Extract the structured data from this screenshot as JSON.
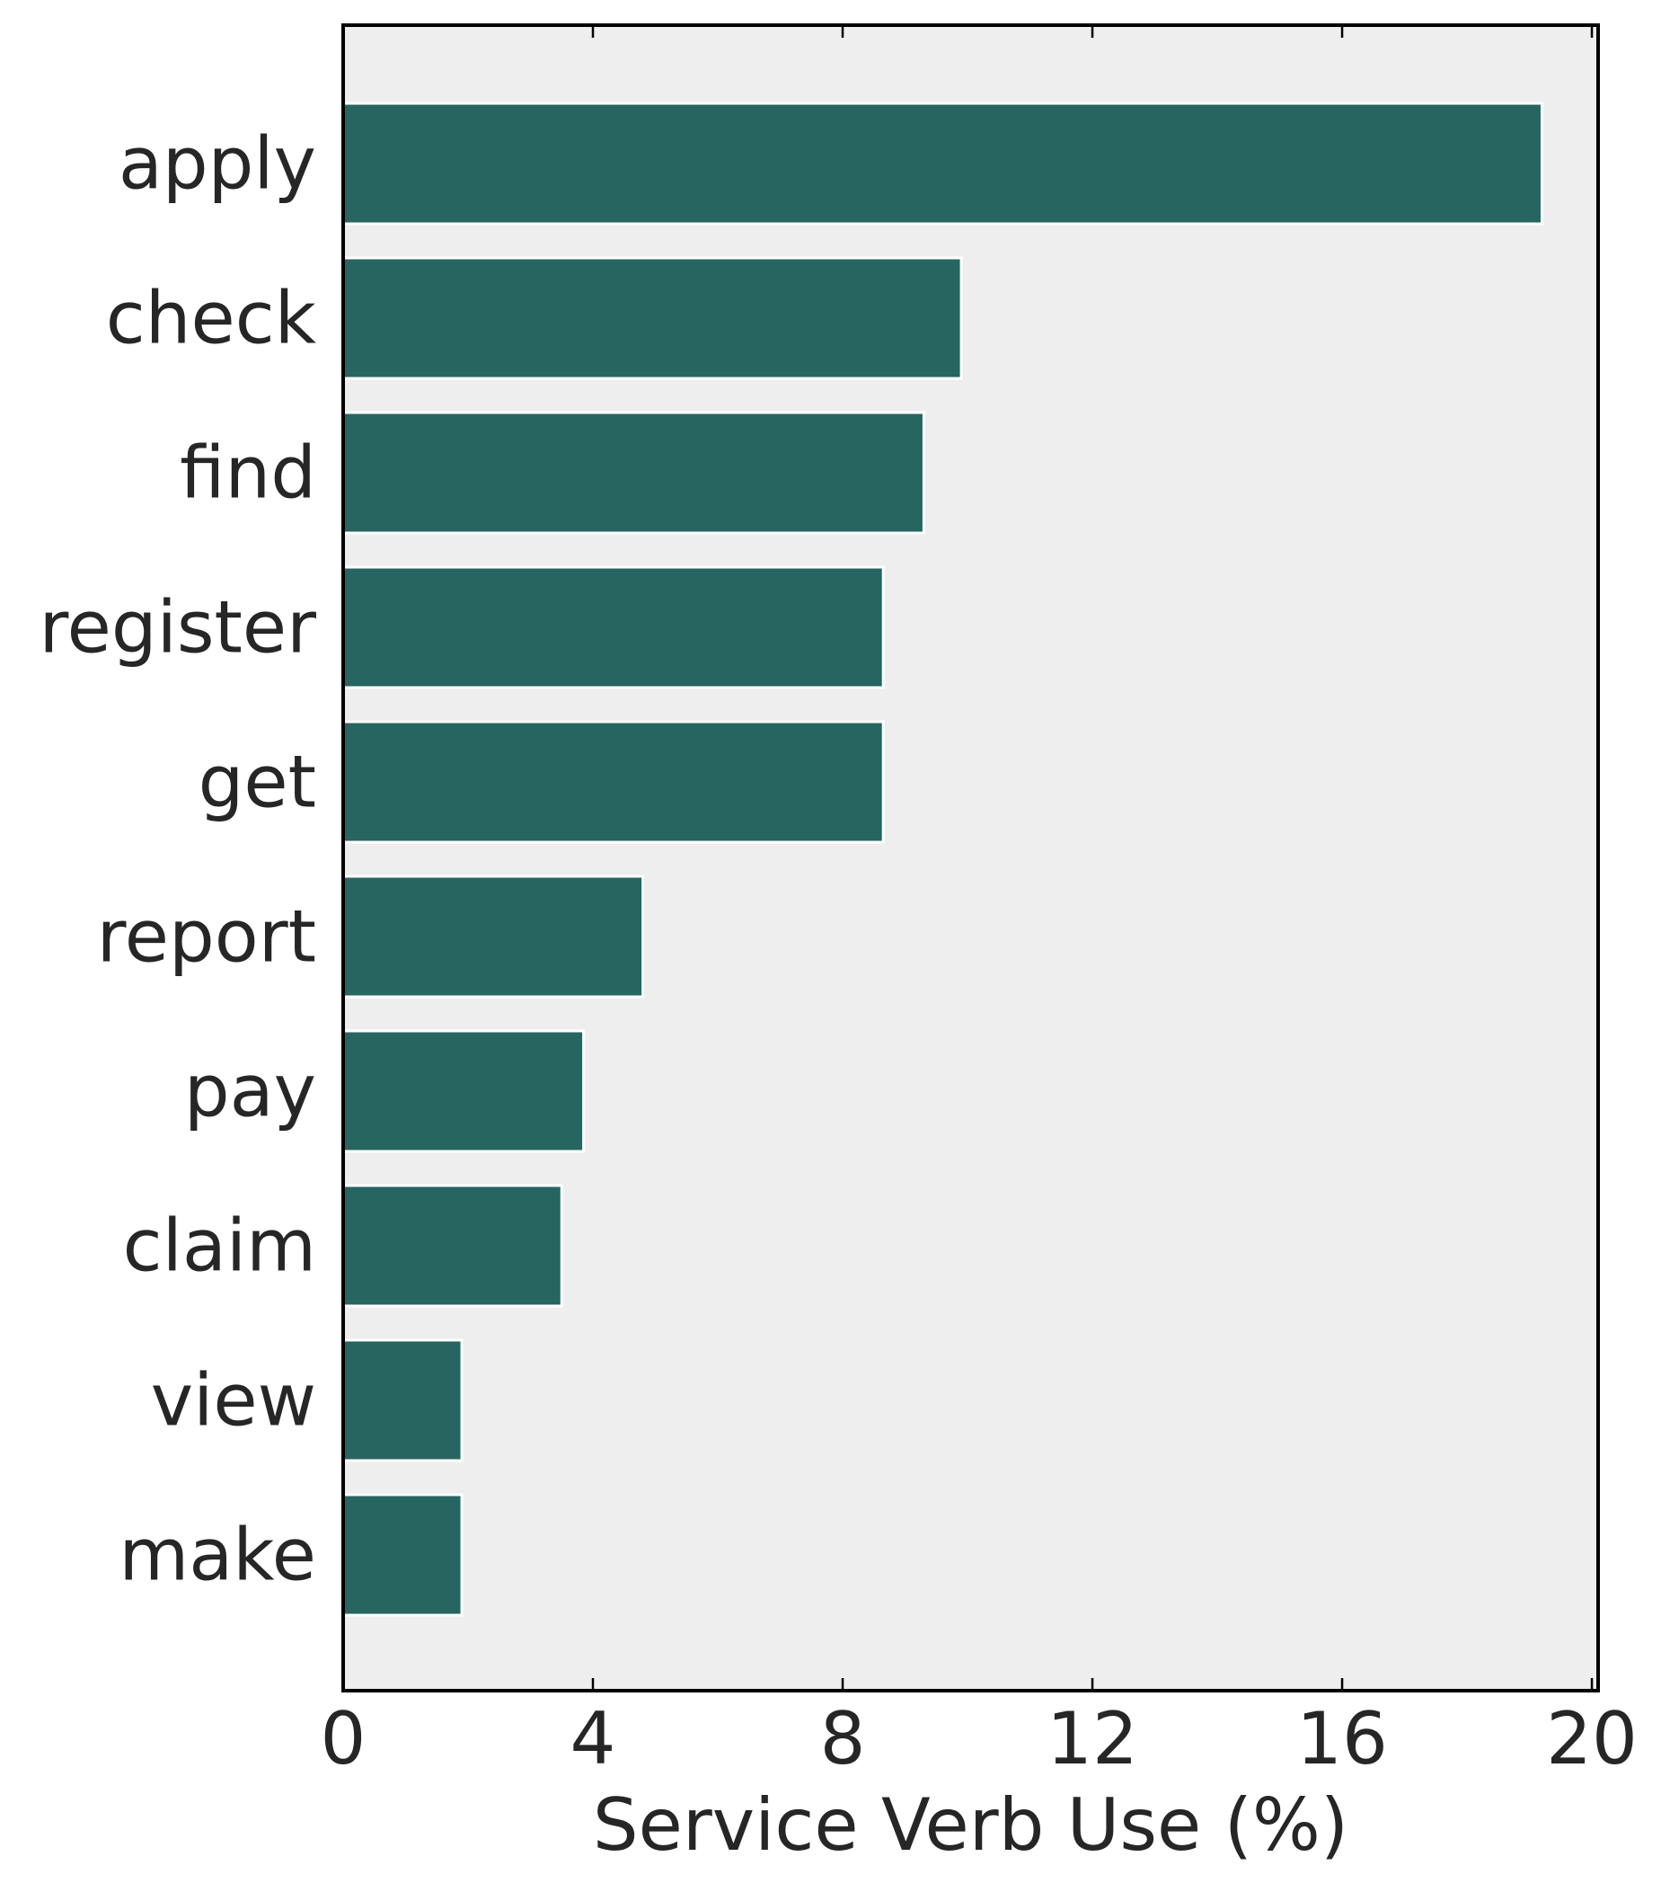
{
  "chart_data": {
    "type": "bar",
    "orientation": "horizontal",
    "categories": [
      "apply",
      "check",
      "find",
      "register",
      "get",
      "report",
      "pay",
      "claim",
      "view",
      "make"
    ],
    "values": [
      19.2,
      9.9,
      9.3,
      8.65,
      8.65,
      4.8,
      3.85,
      3.5,
      1.9,
      1.9
    ],
    "title": "",
    "xlabel": "Service Verb Use (%)",
    "ylabel": "",
    "xlim": [
      0,
      20.1
    ],
    "xticks": [
      0,
      4,
      8,
      12,
      16,
      20
    ],
    "xtick_labels": [
      "0",
      "4",
      "8",
      "12",
      "16",
      "20"
    ],
    "grid": false,
    "legend": "none"
  },
  "colors": {
    "bar": "#276560",
    "bar_edge": "#ffffff",
    "plot_background": "#eeeeee",
    "axes": "#000000",
    "text": "#262626"
  }
}
